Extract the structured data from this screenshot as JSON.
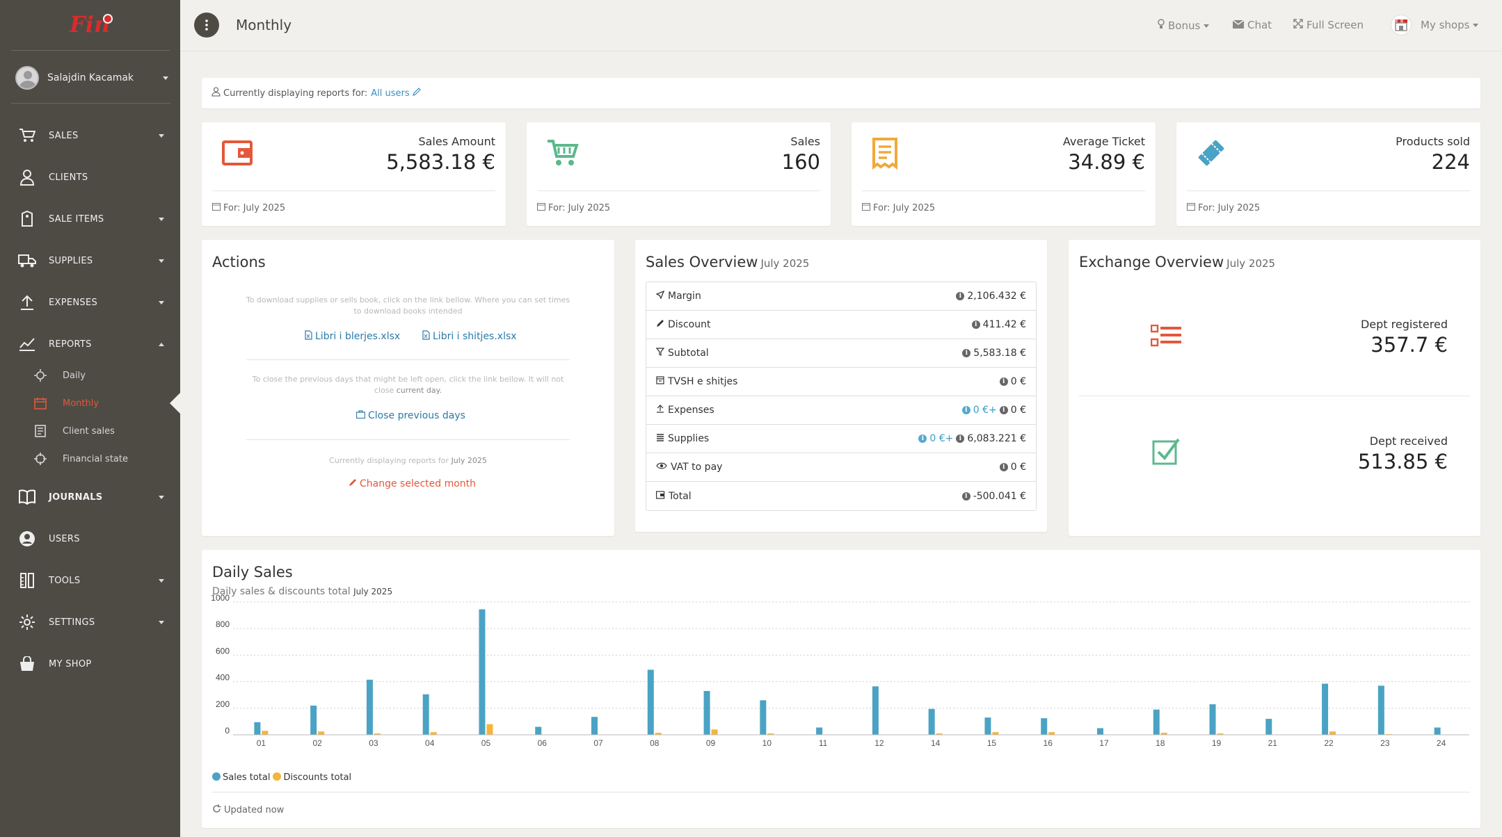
{
  "app": {
    "logo_text": "Fin"
  },
  "user": {
    "name": "Salajdin Kacamak"
  },
  "sidebar": {
    "items": [
      {
        "label": "SALES"
      },
      {
        "label": "CLIENTS"
      },
      {
        "label": "SALE ITEMS"
      },
      {
        "label": "SUPPLIES"
      },
      {
        "label": "EXPENSES"
      },
      {
        "label": "REPORTS"
      },
      {
        "label": "JOURNALS"
      },
      {
        "label": "USERS"
      },
      {
        "label": "TOOLS"
      },
      {
        "label": "SETTINGS"
      },
      {
        "label": "MY SHOP"
      }
    ],
    "reports_sub": [
      {
        "label": "Daily"
      },
      {
        "label": "Monthly"
      },
      {
        "label": "Client sales"
      },
      {
        "label": "Financial state"
      }
    ]
  },
  "header": {
    "title": "Monthly",
    "bonus": "Bonus",
    "chat": "Chat",
    "fullscreen": "Full Screen",
    "my_shops": "My shops"
  },
  "filter": {
    "text": "Currently displaying reports for:",
    "users": "All users"
  },
  "stats": [
    {
      "label": "Sales Amount",
      "value": "5,583.18 €",
      "footer": "For: July 2025"
    },
    {
      "label": "Sales",
      "value": "160",
      "footer": "For: July 2025"
    },
    {
      "label": "Average Ticket",
      "value": "34.89 €",
      "footer": "For: July 2025"
    },
    {
      "label": "Products sold",
      "value": "224",
      "footer": "For: July 2025"
    }
  ],
  "actions": {
    "title": "Actions",
    "note1": "To download supplies or sells book, click on the link bellow. Where you can set times to download books intended",
    "link_buy": "Libri i blerjes.xlsx",
    "link_sell": "Libri i shitjes.xlsx",
    "note2_a": "To close the previous days that might be left open, click the link bellow. It will not close",
    "note2_b": "current day.",
    "close_days": "Close previous days",
    "note3_a": "Currently displaying reports for",
    "note3_b": "July 2025",
    "change_month": "Change selected month"
  },
  "sales_overview": {
    "title": "Sales Overview",
    "period": "July 2025",
    "rows": [
      {
        "label": "Margin",
        "value": "2,106.432 €"
      },
      {
        "label": "Discount",
        "value": "411.42 €"
      },
      {
        "label": "Subtotal",
        "value": "5,583.18 €"
      },
      {
        "label": "TVSH e shitjes",
        "value": "0 €"
      },
      {
        "label": "Expenses",
        "value_a": "0 €+",
        "value_b": "0 €"
      },
      {
        "label": "Supplies",
        "value_a": "0 €+",
        "value_b": "6,083.221 €"
      },
      {
        "label": "VAT to pay",
        "value": "0 €"
      },
      {
        "label": "Total",
        "value": "-500.041 €"
      }
    ]
  },
  "exchange_overview": {
    "title": "Exchange Overview",
    "period": "July 2025",
    "registered_label": "Dept registered",
    "registered_value": "357.7 €",
    "received_label": "Dept received",
    "received_value": "513.85 €"
  },
  "daily_sales": {
    "title": "Daily Sales",
    "subtitle": "Daily sales & discounts total",
    "period": "July 2025",
    "updated": "Updated now"
  },
  "colors": {
    "sales": "#4aa3c4",
    "discounts": "#f4b53a",
    "accent": "#e5573a",
    "sidebar": "#4e4b45"
  },
  "chart_data": {
    "type": "bar",
    "categories": [
      "01",
      "02",
      "03",
      "04",
      "05",
      "06",
      "07",
      "08",
      "09",
      "10",
      "11",
      "12",
      "14",
      "15",
      "16",
      "17",
      "18",
      "19",
      "21",
      "22",
      "23",
      "24"
    ],
    "series": [
      {
        "name": "Sales total",
        "values": [
          95,
          220,
          415,
          305,
          945,
          60,
          135,
          490,
          330,
          260,
          55,
          365,
          195,
          130,
          125,
          50,
          190,
          230,
          120,
          385,
          370,
          55
        ]
      },
      {
        "name": "Discounts total",
        "values": [
          30,
          25,
          10,
          20,
          80,
          0,
          0,
          15,
          40,
          10,
          0,
          0,
          10,
          20,
          20,
          0,
          15,
          10,
          0,
          25,
          5,
          0
        ]
      }
    ],
    "yticks": [
      0,
      200,
      400,
      600,
      800,
      1000
    ],
    "ylim": [
      0,
      1000
    ],
    "grid": true,
    "legend": "bottom-left"
  }
}
